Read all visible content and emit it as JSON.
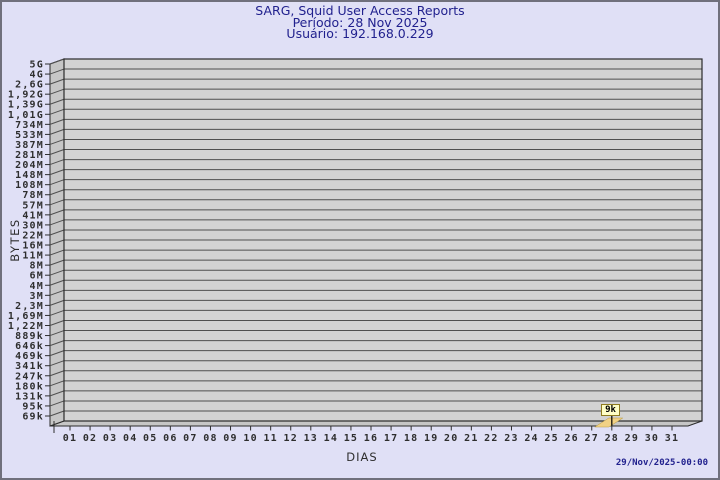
{
  "header": {
    "title": "SARG, Squid User Access Reports",
    "period": "Período: 28 Nov 2025",
    "user": "Usuário: 192.168.0.229"
  },
  "footer": {
    "timestamp": "29/Nov/2025-00:00"
  },
  "colors": {
    "background": "#e0e0f6",
    "title_text": "#21218e",
    "plot_band": "#d3d3d3",
    "wall": "#c6c6c6",
    "grid_line": "#4f4f4f",
    "plot_border": "#2b2b2b",
    "tick_text": "#2e2e2e",
    "marker_fill": "#ffffc6",
    "marker_border": "#8f7b1e",
    "bar_fill": "#f1d185",
    "bar_edge": "#b89a40",
    "timestamp_text": "#21218e"
  },
  "chart_data": {
    "type": "bar",
    "title": "SARG, Squid User Access Reports",
    "subtitle": "Período: 28 Nov 2025 — Usuário: 192.168.0.229",
    "xlabel": "DIAS",
    "ylabel": "BYTES",
    "y_scale": "logarithmic",
    "grid": true,
    "legend": false,
    "x_categories": [
      "01",
      "02",
      "03",
      "04",
      "05",
      "06",
      "07",
      "08",
      "09",
      "10",
      "11",
      "12",
      "13",
      "14",
      "15",
      "16",
      "17",
      "18",
      "19",
      "20",
      "21",
      "22",
      "23",
      "24",
      "25",
      "26",
      "27",
      "28",
      "29",
      "30",
      "31"
    ],
    "y_tick_labels": [
      "5G",
      "4G",
      "2,6G",
      "1,92G",
      "1,39G",
      "1,01G",
      "734M",
      "533M",
      "387M",
      "281M",
      "204M",
      "148M",
      "108M",
      "78M",
      "57M",
      "41M",
      "30M",
      "22M",
      "16M",
      "11M",
      "8M",
      "6M",
      "4M",
      "3M",
      "2,3M",
      "1,69M",
      "1,22M",
      "889k",
      "646k",
      "469k",
      "341k",
      "247k",
      "180k",
      "131k",
      "95k",
      "69k"
    ],
    "bars": [
      {
        "day": "28",
        "value_bytes": 9000,
        "label": "9k"
      }
    ]
  }
}
